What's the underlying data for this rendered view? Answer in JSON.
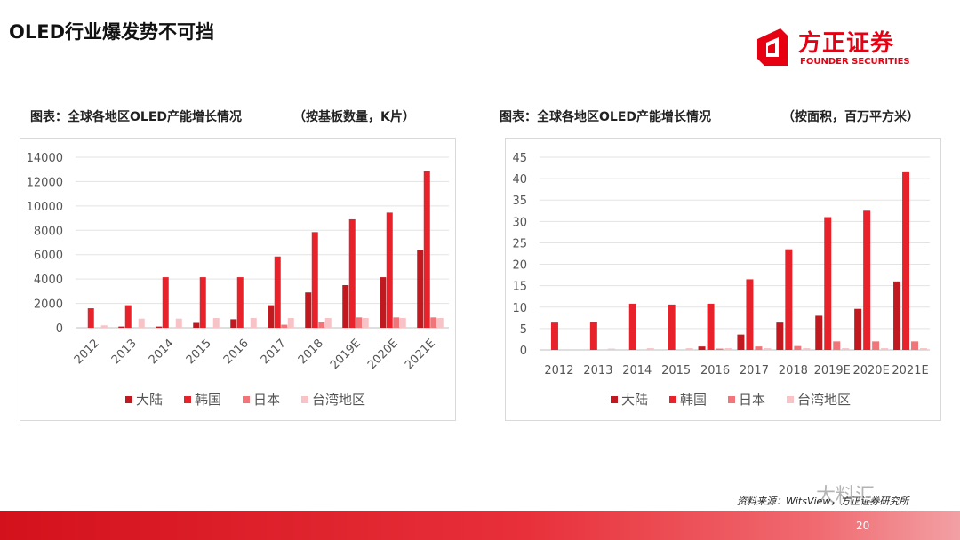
{
  "slide": {
    "title": "OLED行业爆发势不可挡",
    "page_number": "20",
    "source": "资料来源：WitsView，方正证券研究所",
    "watermark": "大料汇"
  },
  "logo": {
    "name_cn": "方正证券",
    "name_en": "FOUNDER SECURITIES",
    "color": "#e60012"
  },
  "charts": [
    {
      "heading": "图表：全球各地区OLED产能增长情况",
      "unit_note": "（按基板数量，K片）"
    },
    {
      "heading": "图表：全球各地区OLED产能增长情况",
      "unit_note": "（按面积，百万平方米）"
    }
  ],
  "chart_data": [
    {
      "type": "bar",
      "title": "图表：全球各地区OLED产能增长情况",
      "unit": "（按基板数量，K片）",
      "categories": [
        "2012",
        "2013",
        "2014",
        "2015",
        "2016",
        "2017",
        "2018",
        "2019E",
        "2020E",
        "2021E"
      ],
      "ylim": [
        0,
        14000
      ],
      "yticks": [
        0,
        2000,
        4000,
        6000,
        8000,
        10000,
        12000,
        14000
      ],
      "grid": true,
      "legend_position": "bottom",
      "x_label_rotation": "rotated",
      "series": [
        {
          "name": "大陆",
          "color": "#c0191f",
          "values": [
            0,
            100,
            100,
            400,
            700,
            1850,
            2900,
            3500,
            4150,
            6400
          ]
        },
        {
          "name": "韩国",
          "color": "#e8222a",
          "values": [
            1600,
            1850,
            4150,
            4150,
            4150,
            5850,
            7850,
            8900,
            9450,
            12850
          ]
        },
        {
          "name": "日本",
          "color": "#f07478",
          "values": [
            0,
            0,
            0,
            0,
            0,
            250,
            450,
            850,
            850,
            850
          ]
        },
        {
          "name": "台湾地区",
          "color": "#f7c3c6",
          "values": [
            200,
            750,
            750,
            800,
            800,
            800,
            800,
            800,
            800,
            800
          ]
        }
      ]
    },
    {
      "type": "bar",
      "title": "图表：全球各地区OLED产能增长情况",
      "unit": "（按面积，百万平方米）",
      "categories": [
        "2012",
        "2013",
        "2014",
        "2015",
        "2016",
        "2017",
        "2018",
        "2019E",
        "2020E",
        "2021E"
      ],
      "ylim": [
        0,
        45
      ],
      "yticks": [
        0,
        5,
        10,
        15,
        20,
        25,
        30,
        35,
        40,
        45
      ],
      "grid": true,
      "legend_position": "bottom",
      "x_label_rotation": "none",
      "series": [
        {
          "name": "大陆",
          "color": "#c0191f",
          "values": [
            0,
            0,
            0,
            0,
            0.8,
            3.6,
            6.4,
            8.0,
            9.6,
            16.0
          ]
        },
        {
          "name": "韩国",
          "color": "#e8222a",
          "values": [
            6.4,
            6.5,
            10.8,
            10.6,
            10.8,
            16.5,
            23.5,
            31.0,
            32.5,
            41.5
          ]
        },
        {
          "name": "日本",
          "color": "#f07478",
          "values": [
            0,
            0,
            0,
            0,
            0.3,
            0.8,
            0.9,
            2.0,
            2.0,
            2.0
          ]
        },
        {
          "name": "台湾地区",
          "color": "#f7c3c6",
          "values": [
            0,
            0.3,
            0.4,
            0.4,
            0.4,
            0.4,
            0.4,
            0.4,
            0.4,
            0.4
          ]
        }
      ]
    }
  ]
}
